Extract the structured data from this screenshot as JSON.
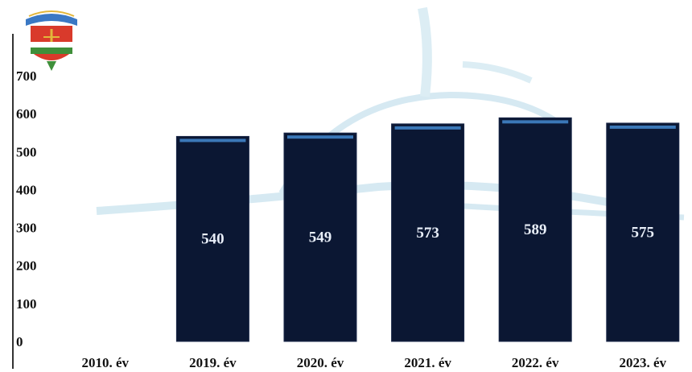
{
  "colors": {
    "bar_fill": "#0b1733",
    "bar_top_highlight": "#3b78b8",
    "watermark": "#bfe0ee",
    "axis_line": "#333333",
    "crest_red": "#d93a2b",
    "crest_green": "#3f8f3a",
    "crest_blue": "#3a78c4",
    "crest_gold": "#e2b63b"
  },
  "crest": {
    "icon": "coat-of-arms-icon"
  },
  "chart_data": {
    "type": "bar",
    "categories": [
      "2010. év",
      "2019. év",
      "2020. év",
      "2021. év",
      "2022. év",
      "2023. év"
    ],
    "values": [
      null,
      540,
      549,
      573,
      589,
      575
    ],
    "data_labels": [
      "",
      "540",
      "549",
      "573",
      "589",
      "575"
    ],
    "y_ticks": [
      "0",
      "100",
      "200",
      "300",
      "400",
      "500",
      "600",
      "700"
    ],
    "ylim": [
      0,
      700
    ],
    "title": "",
    "xlabel": "",
    "ylabel": "",
    "grid": false,
    "legend": "none"
  }
}
